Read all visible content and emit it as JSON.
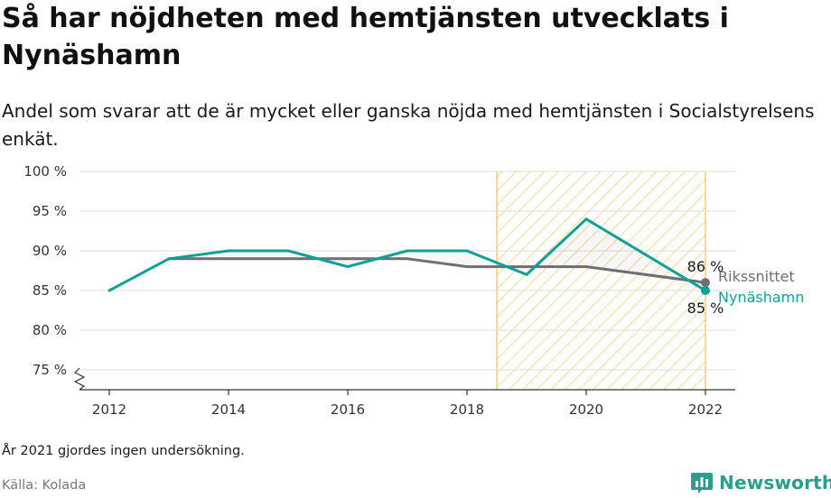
{
  "header": {
    "title": "Så har nöjdheten med hemtjänsten utvecklats i Nynäshamn",
    "subtitle": "Andel som svarar att de är mycket eller ganska nöjda med hemtjänsten i Socialstyrelsens enkät."
  },
  "footer": {
    "note": "År 2021 gjordes ingen undersökning.",
    "source": "Källa: Kolada",
    "brand": "Newsworthy"
  },
  "colors": {
    "nynashamn": "#0fa196",
    "riket": "#6e6e73",
    "highlight": "#f6c04b",
    "grid": "#dcdcdc"
  },
  "chart_data": {
    "type": "line",
    "x": [
      2012,
      2013,
      2014,
      2015,
      2016,
      2017,
      2018,
      2019,
      2020,
      2022
    ],
    "x_ticks": [
      "2012",
      "2014",
      "2016",
      "2018",
      "2020",
      "2022"
    ],
    "y_ticks": [
      "75 %",
      "80 %",
      "85 %",
      "90 %",
      "95 %",
      "100 %"
    ],
    "ylim": [
      72.5,
      100
    ],
    "xlim": [
      2012,
      2022
    ],
    "grid": true,
    "axis_break": true,
    "highlight_range": [
      2018.5,
      2022
    ],
    "series": [
      {
        "name": "Rikssnittet",
        "key": "riket",
        "x": [
          2013,
          2014,
          2015,
          2016,
          2017,
          2018,
          2019,
          2020,
          2022
        ],
        "values": [
          89,
          89,
          89,
          89,
          89,
          88,
          88,
          88,
          86
        ],
        "end_label": "86 %"
      },
      {
        "name": "Nynäshamn",
        "key": "nynashamn",
        "x": [
          2012,
          2013,
          2014,
          2015,
          2016,
          2017,
          2018,
          2019,
          2020,
          2022
        ],
        "values": [
          85,
          89,
          90,
          90,
          88,
          90,
          90,
          87,
          94,
          85
        ],
        "end_label": "85 %"
      }
    ]
  }
}
